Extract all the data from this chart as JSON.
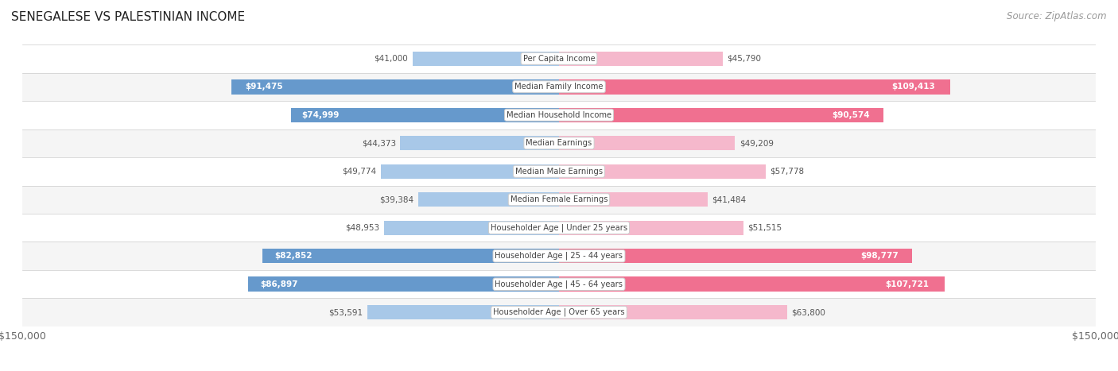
{
  "title": "SENEGALESE VS PALESTINIAN INCOME",
  "source": "Source: ZipAtlas.com",
  "categories": [
    "Per Capita Income",
    "Median Family Income",
    "Median Household Income",
    "Median Earnings",
    "Median Male Earnings",
    "Median Female Earnings",
    "Householder Age | Under 25 years",
    "Householder Age | 25 - 44 years",
    "Householder Age | 45 - 64 years",
    "Householder Age | Over 65 years"
  ],
  "senegalese_values": [
    41000,
    91475,
    74999,
    44373,
    49774,
    39384,
    48953,
    82852,
    86897,
    53591
  ],
  "palestinian_values": [
    45790,
    109413,
    90574,
    49209,
    57778,
    41484,
    51515,
    98777,
    107721,
    63800
  ],
  "senegalese_labels": [
    "$41,000",
    "$91,475",
    "$74,999",
    "$44,373",
    "$49,774",
    "$39,384",
    "$48,953",
    "$82,852",
    "$86,897",
    "$53,591"
  ],
  "palestinian_labels": [
    "$45,790",
    "$109,413",
    "$90,574",
    "$49,209",
    "$57,778",
    "$41,484",
    "$51,515",
    "$98,777",
    "$107,721",
    "$63,800"
  ],
  "xlim": 150000,
  "x_label_left": "$150,000",
  "x_label_right": "$150,000",
  "color_senegalese_light": "#a8c8e8",
  "color_senegalese_dark": "#6699cc",
  "color_palestinian_light": "#f5b8cc",
  "color_palestinian_dark": "#f07090",
  "color_bg_row_light": "#f5f5f5",
  "color_bg_row_white": "#ffffff",
  "highlight_rows": [
    1,
    2,
    7,
    8
  ],
  "title_fontsize": 11,
  "source_fontsize": 8.5,
  "bar_height": 0.52,
  "figsize": [
    14.06,
    4.67
  ],
  "dpi": 100
}
